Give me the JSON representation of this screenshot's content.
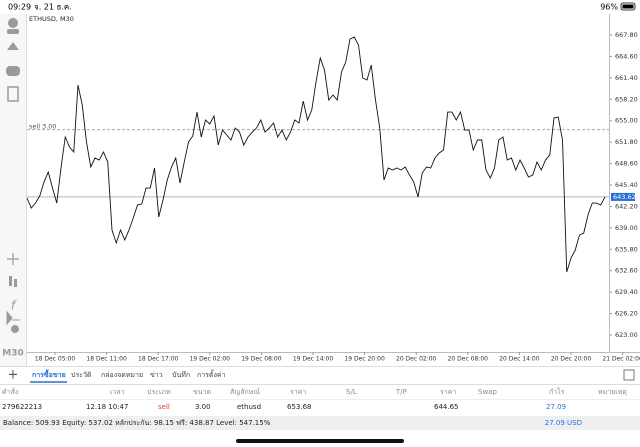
{
  "status_bar": {
    "time": "09:29",
    "date": "จ. 21 ธ.ค.",
    "battery": "96%"
  },
  "chart": {
    "symbol_label": "ETHUSD, M30",
    "timeframe": "M30",
    "ylim": [
      620.46,
      670.94
    ],
    "yticks": [
      {
        "value": 667.8,
        "label": "667.80"
      },
      {
        "value": 664.6,
        "label": "664.60"
      },
      {
        "value": 661.4,
        "label": "661.40"
      },
      {
        "value": 658.2,
        "label": "658.20"
      },
      {
        "value": 655,
        "label": "655.00"
      },
      {
        "value": 651.8,
        "label": "651.80"
      },
      {
        "value": 648.6,
        "label": "648.60"
      },
      {
        "value": 645.4,
        "label": "645.40"
      },
      {
        "value": 642.2,
        "label": "642.20"
      },
      {
        "value": 639,
        "label": "639.00"
      },
      {
        "value": 635.8,
        "label": "635.80"
      },
      {
        "value": 632.6,
        "label": "632.60"
      },
      {
        "value": 629.4,
        "label": "629.40"
      },
      {
        "value": 626.2,
        "label": "626.20"
      },
      {
        "value": 623,
        "label": "623.00"
      }
    ],
    "time_labels": [
      "18 Dec 05:00",
      "18 Dec 11:00",
      "18 Dec 17:00",
      "19 Dec 02:00",
      "19 Dec 08:00",
      "19 Dec 14:00",
      "19 Dec 20:00",
      "20 Dec 02:00",
      "20 Dec 08:00",
      "20 Dec 14:00",
      "20 Dec 20:00",
      "21 Dec 02:00"
    ],
    "current_price": 643.62,
    "order_line": {
      "label": "sell 3.00",
      "price": 653.68
    },
    "values": [
      643.46,
      641.96,
      642.71,
      643.76,
      645.85,
      647.34,
      644.95,
      642.71,
      647.94,
      652.57,
      651.07,
      650.33,
      660.33,
      657.35,
      651.82,
      648.09,
      649.43,
      649.13,
      650.33,
      648.83,
      638.68,
      636.74,
      638.68,
      637.19,
      638.68,
      640.47,
      642.41,
      642.56,
      644.95,
      644.95,
      647.94,
      640.62,
      643.16,
      646.15,
      648.09,
      649.43,
      645.7,
      648.83,
      651.82,
      652.72,
      656.3,
      652.57,
      655.11,
      654.51,
      655.7,
      651.37,
      653.61,
      652.87,
      652.12,
      653.91,
      653.31,
      651.37,
      652.57,
      653.31,
      653.91,
      655.11,
      653.31,
      653.91,
      654.66,
      652.57,
      653.61,
      652.12,
      653.31,
      655.11,
      654.66,
      657.94,
      655.11,
      656.6,
      660.78,
      664.37,
      662.57,
      658.09,
      658.84,
      658.09,
      662.27,
      663.77,
      667.2,
      667.5,
      666.31,
      661.38,
      661.08,
      663.32,
      658.09,
      653.91,
      646.15,
      647.94,
      647.64,
      647.94,
      647.64,
      648.09,
      646.89,
      645.85,
      643.61,
      647.19,
      648.09,
      647.94,
      649.43,
      650.18,
      650.63,
      656.3,
      656.3,
      655.11,
      656.3,
      653.61,
      653.61,
      650.63,
      652.12,
      652.12,
      647.64,
      646.44,
      647.94,
      652.12,
      652.57,
      649.13,
      649.43,
      647.64,
      649.13,
      647.94,
      646.59,
      646.89,
      648.83,
      647.64,
      649.13,
      649.88,
      655.4,
      655.55,
      652.12,
      632.41,
      634.5,
      635.69,
      637.93,
      638.23,
      640.92,
      642.71,
      642.71,
      642.41,
      643.62
    ]
  },
  "terminal": {
    "tabs": [
      "การซื้อขาย",
      "ประวัติ",
      "กล่องจดหมาย",
      "ข่าว",
      "บันทึก",
      "การตั้งค่า"
    ],
    "columns": [
      "คำสั่ง",
      "เวลา",
      "ประเภท",
      "ขนาด",
      "สัญลักษณ์",
      "ราคา",
      "S/L",
      "T/P",
      "ราคา",
      "Swap",
      "กำไร",
      "หมายเหตุ"
    ],
    "row": {
      "order": "279622213",
      "time": "12.18 10:47",
      "type": "sell",
      "volume": "3.00",
      "symbol": "ethusd",
      "price": "653.68",
      "current_price": "644.65",
      "profit": "27.09"
    },
    "balance": "Balance: 509.93 Equity: 537.02 หลักประกัน: 98.15 ฟรี: 438.87 Level: 547.15%",
    "total": "27.09 USD"
  }
}
